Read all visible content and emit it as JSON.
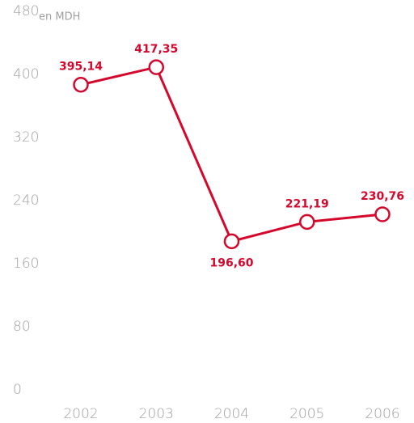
{
  "chart_data": {
    "type": "line",
    "y_unit": "en MDH",
    "categories": [
      "2002",
      "2003",
      "2004",
      "2005",
      "2006"
    ],
    "series": [
      {
        "name": null,
        "color": "#d4082c",
        "values": [
          395.14,
          417.35,
          196.6,
          221.19,
          230.76
        ],
        "value_labels": [
          "395,14",
          "417,35",
          "196,60",
          "221,19",
          "230,76"
        ]
      }
    ],
    "ylim": [
      0,
      480
    ],
    "yticks": [
      0,
      80,
      160,
      240,
      320,
      400,
      480
    ],
    "grid": false
  }
}
